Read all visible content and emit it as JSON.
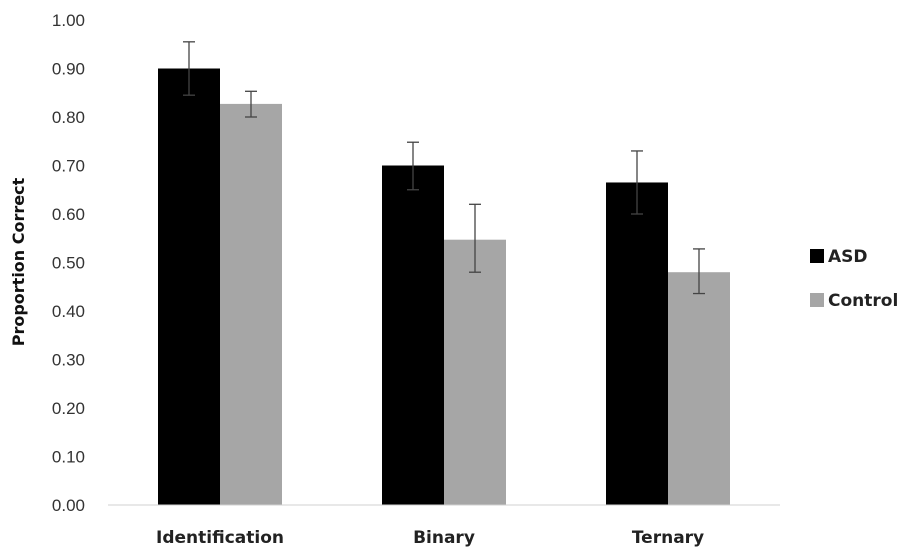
{
  "chart_data": {
    "type": "bar",
    "title": "",
    "xlabel": "",
    "ylabel": "Proportion Correct",
    "ylim": [
      0,
      1.0
    ],
    "yticks": [
      "0.00",
      "0.10",
      "0.20",
      "0.30",
      "0.40",
      "0.50",
      "0.60",
      "0.70",
      "0.80",
      "0.90",
      "1.00"
    ],
    "categories": [
      "Identification",
      "Binary",
      "Ternary"
    ],
    "series": [
      {
        "name": "ASD",
        "color": "#000000",
        "values": [
          0.9,
          0.7,
          0.665
        ],
        "error_low": [
          0.845,
          0.65,
          0.6
        ],
        "error_high": [
          0.955,
          0.748,
          0.73
        ]
      },
      {
        "name": "Control",
        "color": "#a6a6a6",
        "values": [
          0.827,
          0.547,
          0.48
        ],
        "error_low": [
          0.8,
          0.48,
          0.436
        ],
        "error_high": [
          0.853,
          0.62,
          0.528
        ]
      }
    ],
    "grid": false,
    "legend_position": "right"
  }
}
